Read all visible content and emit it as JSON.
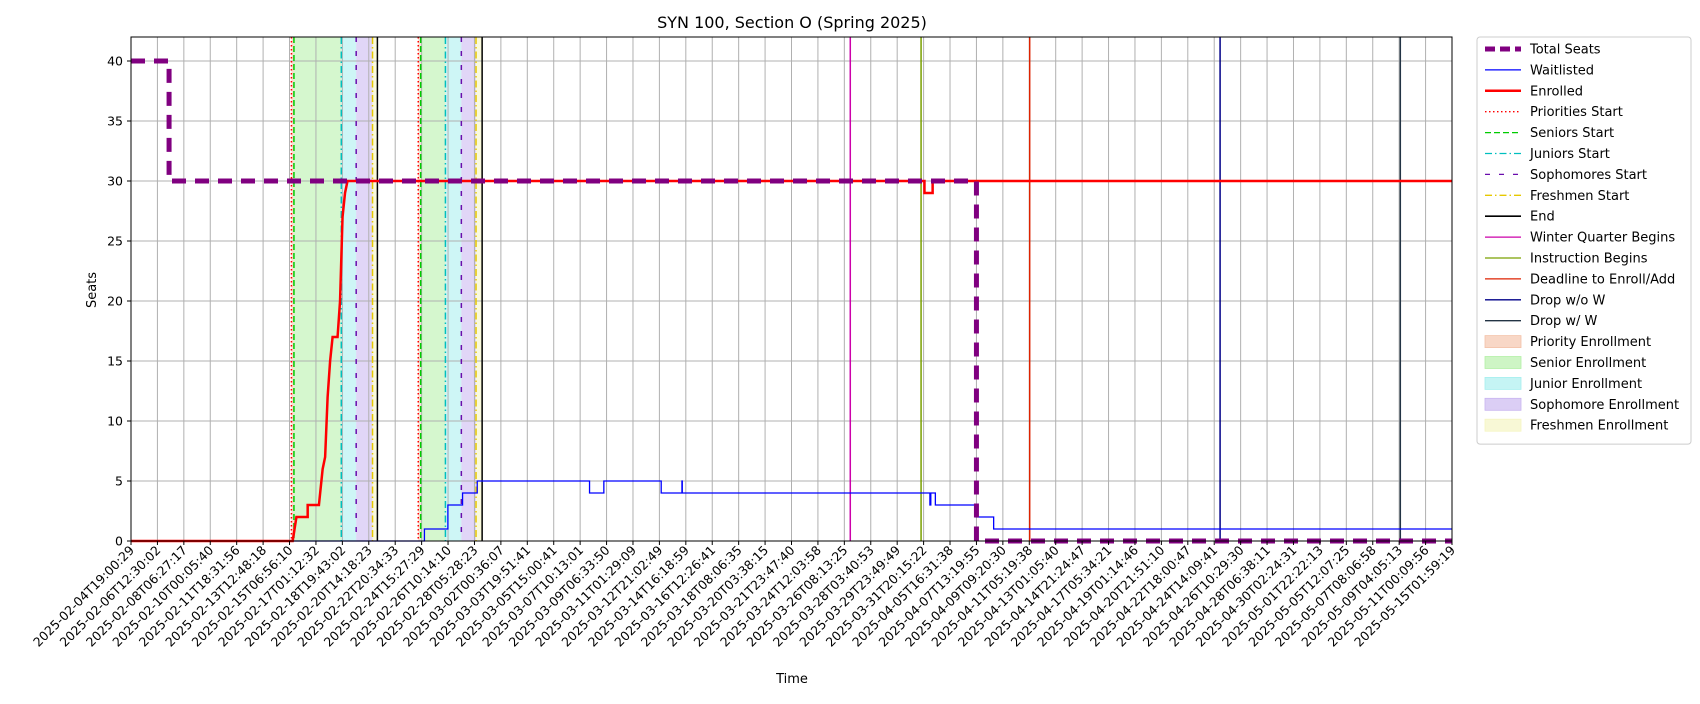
{
  "chart_data": {
    "type": "line",
    "title": "SYN 100, Section O (Spring 2025)",
    "xlabel": "Time",
    "ylabel": "Seats",
    "xlim": [
      "2025-02-04T19:00:29",
      "2025-05-15T01:59:19"
    ],
    "ylim": [
      0,
      42
    ],
    "yticks": [
      0,
      5,
      10,
      15,
      20,
      25,
      30,
      35,
      40
    ],
    "xticks": [
      "2025-02-04T19:00:29",
      "2025-02-06T12:30:02",
      "2025-02-08T06:27:17",
      "2025-02-10T00:05:40",
      "2025-02-11T18:31:56",
      "2025-02-13T12:48:18",
      "2025-02-15T06:56:10",
      "2025-02-17T01:12:32",
      "2025-02-18T19:43:02",
      "2025-02-20T14:18:23",
      "2025-02-22T20:34:33",
      "2025-02-24T15:27:29",
      "2025-02-26T10:14:10",
      "2025-02-28T05:28:23",
      "2025-03-02T00:36:07",
      "2025-03-03T19:51:41",
      "2025-03-05T15:00:41",
      "2025-03-07T10:13:01",
      "2025-03-09T06:33:50",
      "2025-03-11T01:29:09",
      "2025-03-12T21:02:49",
      "2025-03-14T16:18:59",
      "2025-03-16T12:26:41",
      "2025-03-18T08:06:35",
      "2025-03-20T03:38:15",
      "2025-03-21T23:47:40",
      "2025-03-24T12:03:58",
      "2025-03-26T08:13:25",
      "2025-03-28T03:40:53",
      "2025-03-29T23:49:49",
      "2025-03-31T20:15:22",
      "2025-04-05T16:31:38",
      "2025-04-07T13:19:55",
      "2025-04-09T09:20:30",
      "2025-04-11T05:19:38",
      "2025-04-13T01:05:40",
      "2025-04-14T21:24:47",
      "2025-04-17T05:34:21",
      "2025-04-19T01:14:46",
      "2025-04-20T21:51:10",
      "2025-04-22T18:00:47",
      "2025-04-24T14:09:41",
      "2025-04-26T10:29:30",
      "2025-04-28T06:38:11",
      "2025-04-30T02:24:31",
      "2025-05-01T22:22:13",
      "2025-05-05T12:07:25",
      "2025-05-07T08:06:58",
      "2025-05-09T04:05:13",
      "2025-05-11T00:09:56",
      "2025-05-15T01:59:19"
    ],
    "grid": true,
    "legend_position": "outside-right",
    "legend": [
      {
        "label": "Total Seats",
        "kind": "line",
        "color": "#800080",
        "style": "dashed",
        "width": 5
      },
      {
        "label": "Waitlisted",
        "kind": "line",
        "color": "#0000ff",
        "style": "solid",
        "width": 1.2
      },
      {
        "label": "Enrolled",
        "kind": "line",
        "color": "#ff0000",
        "style": "solid",
        "width": 2.5
      },
      {
        "label": "Priorities Start",
        "kind": "line",
        "color": "#ff0000",
        "style": "dotted",
        "width": 1.3
      },
      {
        "label": "Seniors Start",
        "kind": "line",
        "color": "#00cc00",
        "style": "dashed",
        "width": 1.3
      },
      {
        "label": "Juniors Start",
        "kind": "line",
        "color": "#00bfbf",
        "style": "dashdot",
        "width": 1.3
      },
      {
        "label": "Sophomores Start",
        "kind": "line",
        "color": "#6a0dad",
        "style": "loosedash",
        "width": 1.3
      },
      {
        "label": "Freshmen Start",
        "kind": "line",
        "color": "#e6c800",
        "style": "dashdot",
        "width": 1.3
      },
      {
        "label": "End",
        "kind": "line",
        "color": "#000000",
        "style": "solid",
        "width": 1.6
      },
      {
        "label": "Winter Quarter Begins",
        "kind": "line",
        "color": "#cc00aa",
        "style": "solid",
        "width": 1.3
      },
      {
        "label": "Instruction Begins",
        "kind": "line",
        "color": "#7aa000",
        "style": "solid",
        "width": 1.3
      },
      {
        "label": "Deadline to Enroll/Add",
        "kind": "line",
        "color": "#dd2200",
        "style": "solid",
        "width": 1.3
      },
      {
        "label": "Drop w/o W",
        "kind": "line",
        "color": "#000088",
        "style": "solid",
        "width": 1.3
      },
      {
        "label": "Drop w/ W",
        "kind": "line",
        "color": "#223344",
        "style": "solid",
        "width": 1.3
      },
      {
        "label": "Priority Enrollment",
        "kind": "patch",
        "color": "#f4c2a8"
      },
      {
        "label": "Senior Enrollment",
        "kind": "patch",
        "color": "#b3f0a6"
      },
      {
        "label": "Junior Enrollment",
        "kind": "patch",
        "color": "#a6eeee"
      },
      {
        "label": "Sophomore Enrollment",
        "kind": "patch",
        "color": "#c8b4f0"
      },
      {
        "label": "Freshmen Enrollment",
        "kind": "patch",
        "color": "#f5f5c0"
      }
    ],
    "series": [
      {
        "name": "Total Seats",
        "color": "#800080",
        "points": [
          [
            "2025-02-04T19:00:29",
            40
          ],
          [
            "2025-02-07T07:00:00",
            40
          ],
          [
            "2025-02-07T07:00:00",
            30
          ],
          [
            "2025-04-07T13:19:55",
            30
          ],
          [
            "2025-04-07T13:19:55",
            0
          ],
          [
            "2025-05-15T01:59:19",
            0
          ]
        ]
      },
      {
        "name": "Waitlisted",
        "color": "#0000ff",
        "points": [
          [
            "2025-02-04T19:00:29",
            0
          ],
          [
            "2025-02-24T20:00:00",
            0
          ],
          [
            "2025-02-24T20:00:00",
            1
          ],
          [
            "2025-02-26T10:00:00",
            1
          ],
          [
            "2025-02-26T10:00:00",
            3
          ],
          [
            "2025-02-27T10:00:00",
            3
          ],
          [
            "2025-02-27T10:00:00",
            4
          ],
          [
            "2025-02-28T10:00:00",
            4
          ],
          [
            "2025-02-28T10:00:00",
            5
          ],
          [
            "2025-03-08T02:00:00",
            5
          ],
          [
            "2025-03-08T02:00:00",
            4
          ],
          [
            "2025-03-09T02:00:00",
            4
          ],
          [
            "2025-03-09T02:00:00",
            5
          ],
          [
            "2025-03-13T00:00:00",
            5
          ],
          [
            "2025-03-13T00:00:00",
            4
          ],
          [
            "2025-03-14T10:00:00",
            4
          ],
          [
            "2025-03-14T10:00:00",
            5
          ],
          [
            "2025-03-14T10:30:00",
            5
          ],
          [
            "2025-03-14T10:30:00",
            4
          ],
          [
            "2025-04-02T00:00:00",
            4
          ],
          [
            "2025-04-02T00:00:00",
            3
          ],
          [
            "2025-04-02T04:00:00",
            3
          ],
          [
            "2025-04-02T04:00:00",
            4
          ],
          [
            "2025-04-03T00:00:00",
            4
          ],
          [
            "2025-04-03T00:00:00",
            3
          ],
          [
            "2025-04-07T13:00:00",
            3
          ],
          [
            "2025-04-07T13:00:00",
            2
          ],
          [
            "2025-04-08T18:00:00",
            2
          ],
          [
            "2025-04-08T18:00:00",
            1
          ],
          [
            "2025-05-15T01:59:19",
            1
          ]
        ]
      },
      {
        "name": "Enrolled",
        "color": "#ff0000",
        "points": [
          [
            "2025-02-04T19:00:29",
            0
          ],
          [
            "2025-02-15T12:00:00",
            0
          ],
          [
            "2025-02-15T18:00:00",
            2
          ],
          [
            "2025-02-16T12:00:00",
            2
          ],
          [
            "2025-02-16T12:00:00",
            3
          ],
          [
            "2025-02-17T06:00:00",
            3
          ],
          [
            "2025-02-17T08:00:00",
            4
          ],
          [
            "2025-02-17T12:00:00",
            6
          ],
          [
            "2025-02-17T16:00:00",
            7
          ],
          [
            "2025-02-17T20:00:00",
            12
          ],
          [
            "2025-02-18T00:00:00",
            15
          ],
          [
            "2025-02-18T04:00:00",
            17
          ],
          [
            "2025-02-18T12:00:00",
            17
          ],
          [
            "2025-02-18T16:00:00",
            20
          ],
          [
            "2025-02-18T20:00:00",
            27
          ],
          [
            "2025-02-19T00:00:00",
            29
          ],
          [
            "2025-02-19T04:00:00",
            30
          ],
          [
            "2025-04-01T00:00:00",
            30
          ],
          [
            "2025-04-01T00:00:00",
            29
          ],
          [
            "2025-04-02T12:00:00",
            29
          ],
          [
            "2025-04-02T12:00:00",
            30
          ],
          [
            "2025-05-15T01:59:19",
            30
          ]
        ]
      }
    ],
    "vertical_lines": [
      {
        "name": "Priorities Start",
        "color": "#ff0000",
        "style": "dotted",
        "x": [
          "2025-02-15T10:00:00",
          "2025-02-24T10:00:00"
        ]
      },
      {
        "name": "Seniors Start",
        "color": "#00cc00",
        "style": "dashed",
        "x": [
          "2025-02-15T14:00:00",
          "2025-02-24T14:00:00"
        ]
      },
      {
        "name": "Juniors Start",
        "color": "#00bfbf",
        "style": "dashdot",
        "x": [
          "2025-02-18T18:00:00",
          "2025-02-26T06:00:00"
        ]
      },
      {
        "name": "Sophomores Start",
        "color": "#6a0dad",
        "style": "loosedash",
        "x": [
          "2025-02-19T18:00:00",
          "2025-02-27T08:00:00"
        ]
      },
      {
        "name": "Freshmen Start",
        "color": "#e6c800",
        "style": "dashdot",
        "x": [
          "2025-02-20T22:00:00",
          "2025-02-28T08:00:00"
        ]
      },
      {
        "name": "End",
        "color": "#000000",
        "style": "solid",
        "x": [
          "2025-02-21T08:00:00",
          "2025-02-28T18:00:00"
        ]
      },
      {
        "name": "Winter Quarter Begins",
        "color": "#cc00aa",
        "style": "solid",
        "x": [
          "2025-03-26T18:00:00"
        ]
      },
      {
        "name": "Instruction Begins",
        "color": "#7aa000",
        "style": "solid",
        "x": [
          "2025-03-31T16:00:00"
        ]
      },
      {
        "name": "Deadline to Enroll/Add",
        "color": "#dd2200",
        "style": "solid",
        "x": [
          "2025-04-11T06:00:00"
        ]
      },
      {
        "name": "Drop w/o W",
        "color": "#000088",
        "style": "solid",
        "x": [
          "2025-04-25T00:00:00"
        ]
      },
      {
        "name": "Drop w/ W",
        "color": "#223344",
        "style": "solid",
        "x": [
          "2025-05-09T06:00:00"
        ]
      }
    ],
    "spans": [
      {
        "name": "Priority Enrollment",
        "color": "#f4c2a8",
        "ranges": [
          [
            "2025-02-15T10:00:00",
            "2025-02-15T14:00:00"
          ],
          [
            "2025-02-24T10:00:00",
            "2025-02-24T14:00:00"
          ]
        ]
      },
      {
        "name": "Senior Enrollment",
        "color": "#b3f0a6",
        "ranges": [
          [
            "2025-02-15T14:00:00",
            "2025-02-18T18:00:00"
          ],
          [
            "2025-02-24T14:00:00",
            "2025-02-26T06:00:00"
          ]
        ]
      },
      {
        "name": "Junior Enrollment",
        "color": "#a6eeee",
        "ranges": [
          [
            "2025-02-18T18:00:00",
            "2025-02-19T18:00:00"
          ],
          [
            "2025-02-26T06:00:00",
            "2025-02-27T08:00:00"
          ]
        ]
      },
      {
        "name": "Sophomore Enrollment",
        "color": "#c8b4f0",
        "ranges": [
          [
            "2025-02-19T18:00:00",
            "2025-02-20T22:00:00"
          ],
          [
            "2025-02-27T08:00:00",
            "2025-02-28T08:00:00"
          ]
        ]
      },
      {
        "name": "Freshmen Enrollment",
        "color": "#f5f5c0",
        "ranges": [
          [
            "2025-02-20T22:00:00",
            "2025-02-21T08:00:00"
          ],
          [
            "2025-02-28T08:00:00",
            "2025-02-28T18:00:00"
          ]
        ]
      }
    ]
  }
}
